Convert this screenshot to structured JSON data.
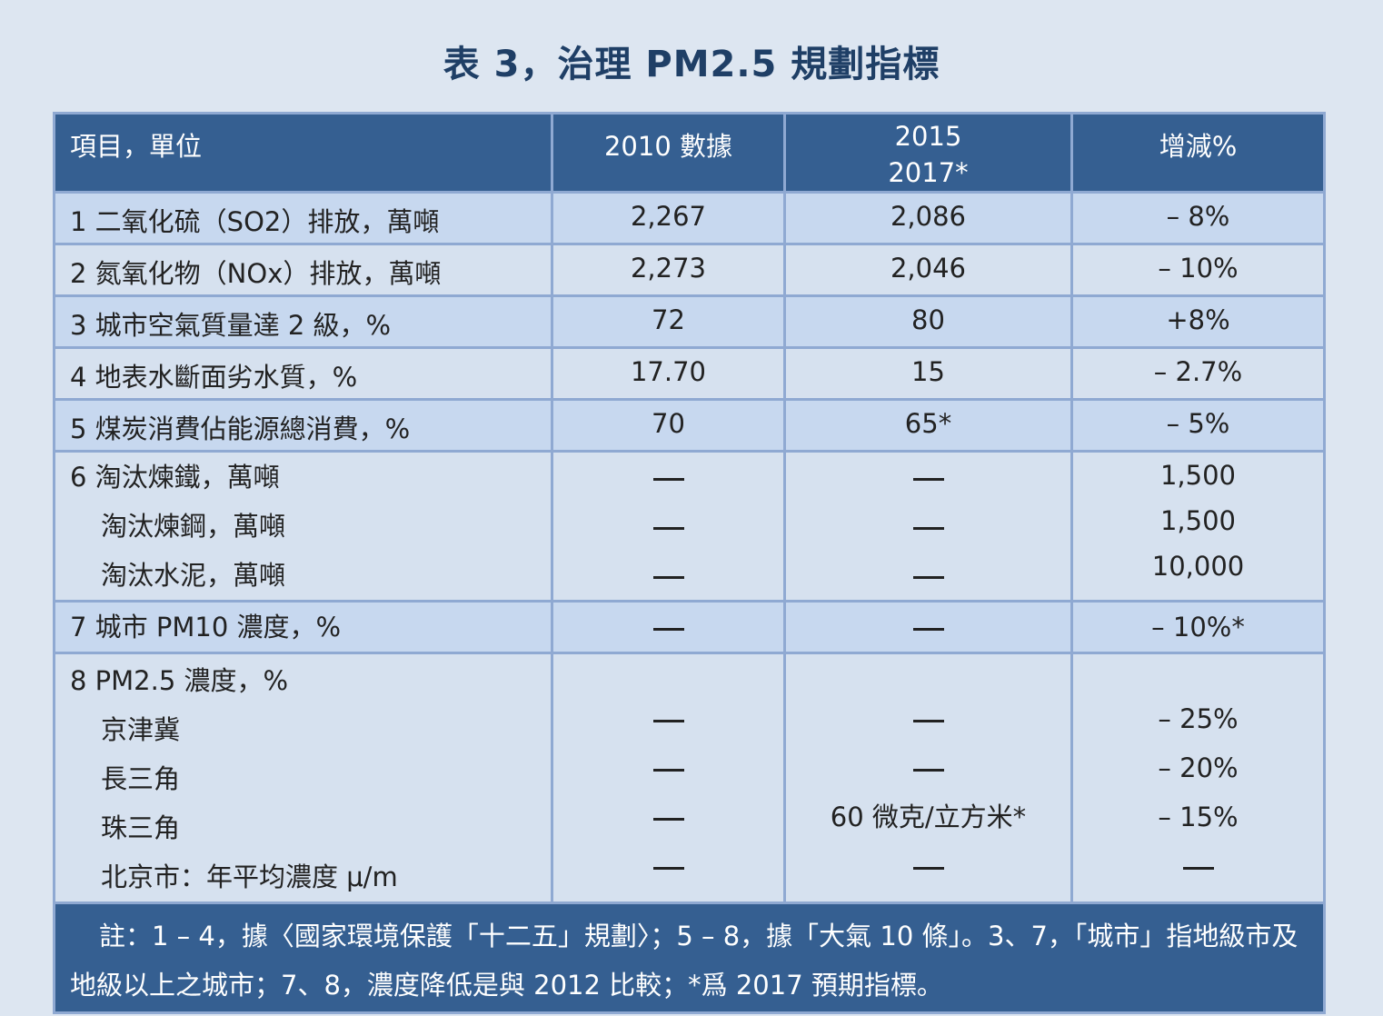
{
  "title": "表 3，治理 PM2.5 規劃指標",
  "header": {
    "col1": "項目，單位",
    "col2": "2010 數據",
    "col3_line1": "2015",
    "col3_line2": "2017*",
    "col4": "增減%"
  },
  "rows": [
    {
      "label": "1  二氧化硫（SO2）排放，萬噸",
      "v2010": "2,267",
      "v2015": "2,086",
      "change": "– 8%"
    },
    {
      "label": "2  氮氧化物（NOx）排放，萬噸",
      "v2010": "2,273",
      "v2015": "2,046",
      "change": "– 10%"
    },
    {
      "label": "3  城市空氣質量達 2 級，%",
      "v2010": "72",
      "v2015": "80",
      "change": "+8%"
    },
    {
      "label": "4  地表水斷面劣水質，%",
      "v2010": "17.70",
      "v2015": "15",
      "change": "– 2.7%"
    },
    {
      "label": "5  煤炭消費佔能源總消費，%",
      "v2010": "70",
      "v2015": "65*",
      "change": "– 5%"
    }
  ],
  "row6": {
    "label": "6  淘汰煉鐵，萬噸",
    "sub1": "淘汰煉鋼，萬噸",
    "sub2": "淘汰水泥，萬噸",
    "change1": "1,500",
    "change2": "1,500",
    "change3": "10,000"
  },
  "row7": {
    "label": "7  城市 PM10 濃度，%",
    "change": "– 10%*"
  },
  "row8": {
    "label": "8  PM2.5 濃度，%",
    "sub1": "京津冀",
    "sub2": "長三角",
    "sub3": "珠三角",
    "sub4": "北京市：年平均濃度 μ/m",
    "change1": "– 25%",
    "change2": "– 20%",
    "change3": "– 15%",
    "v2015_sub3": "60 微克/立方米*"
  },
  "note": "註：1 – 4，據〈國家環境保護「十二五」規劃〉；5 – 8，據「大氣 10 條」。3、7，「城市」指地級市及地級以上之城市；7、8，濃度降低是與 2012 比較；*爲 2017 預期指標。",
  "colors": {
    "header_bg": "#355f91",
    "row_light": "#c7d8ef",
    "row_pale": "#d6e1ef",
    "border": "#8fa9d2",
    "title": "#1f3f66"
  }
}
